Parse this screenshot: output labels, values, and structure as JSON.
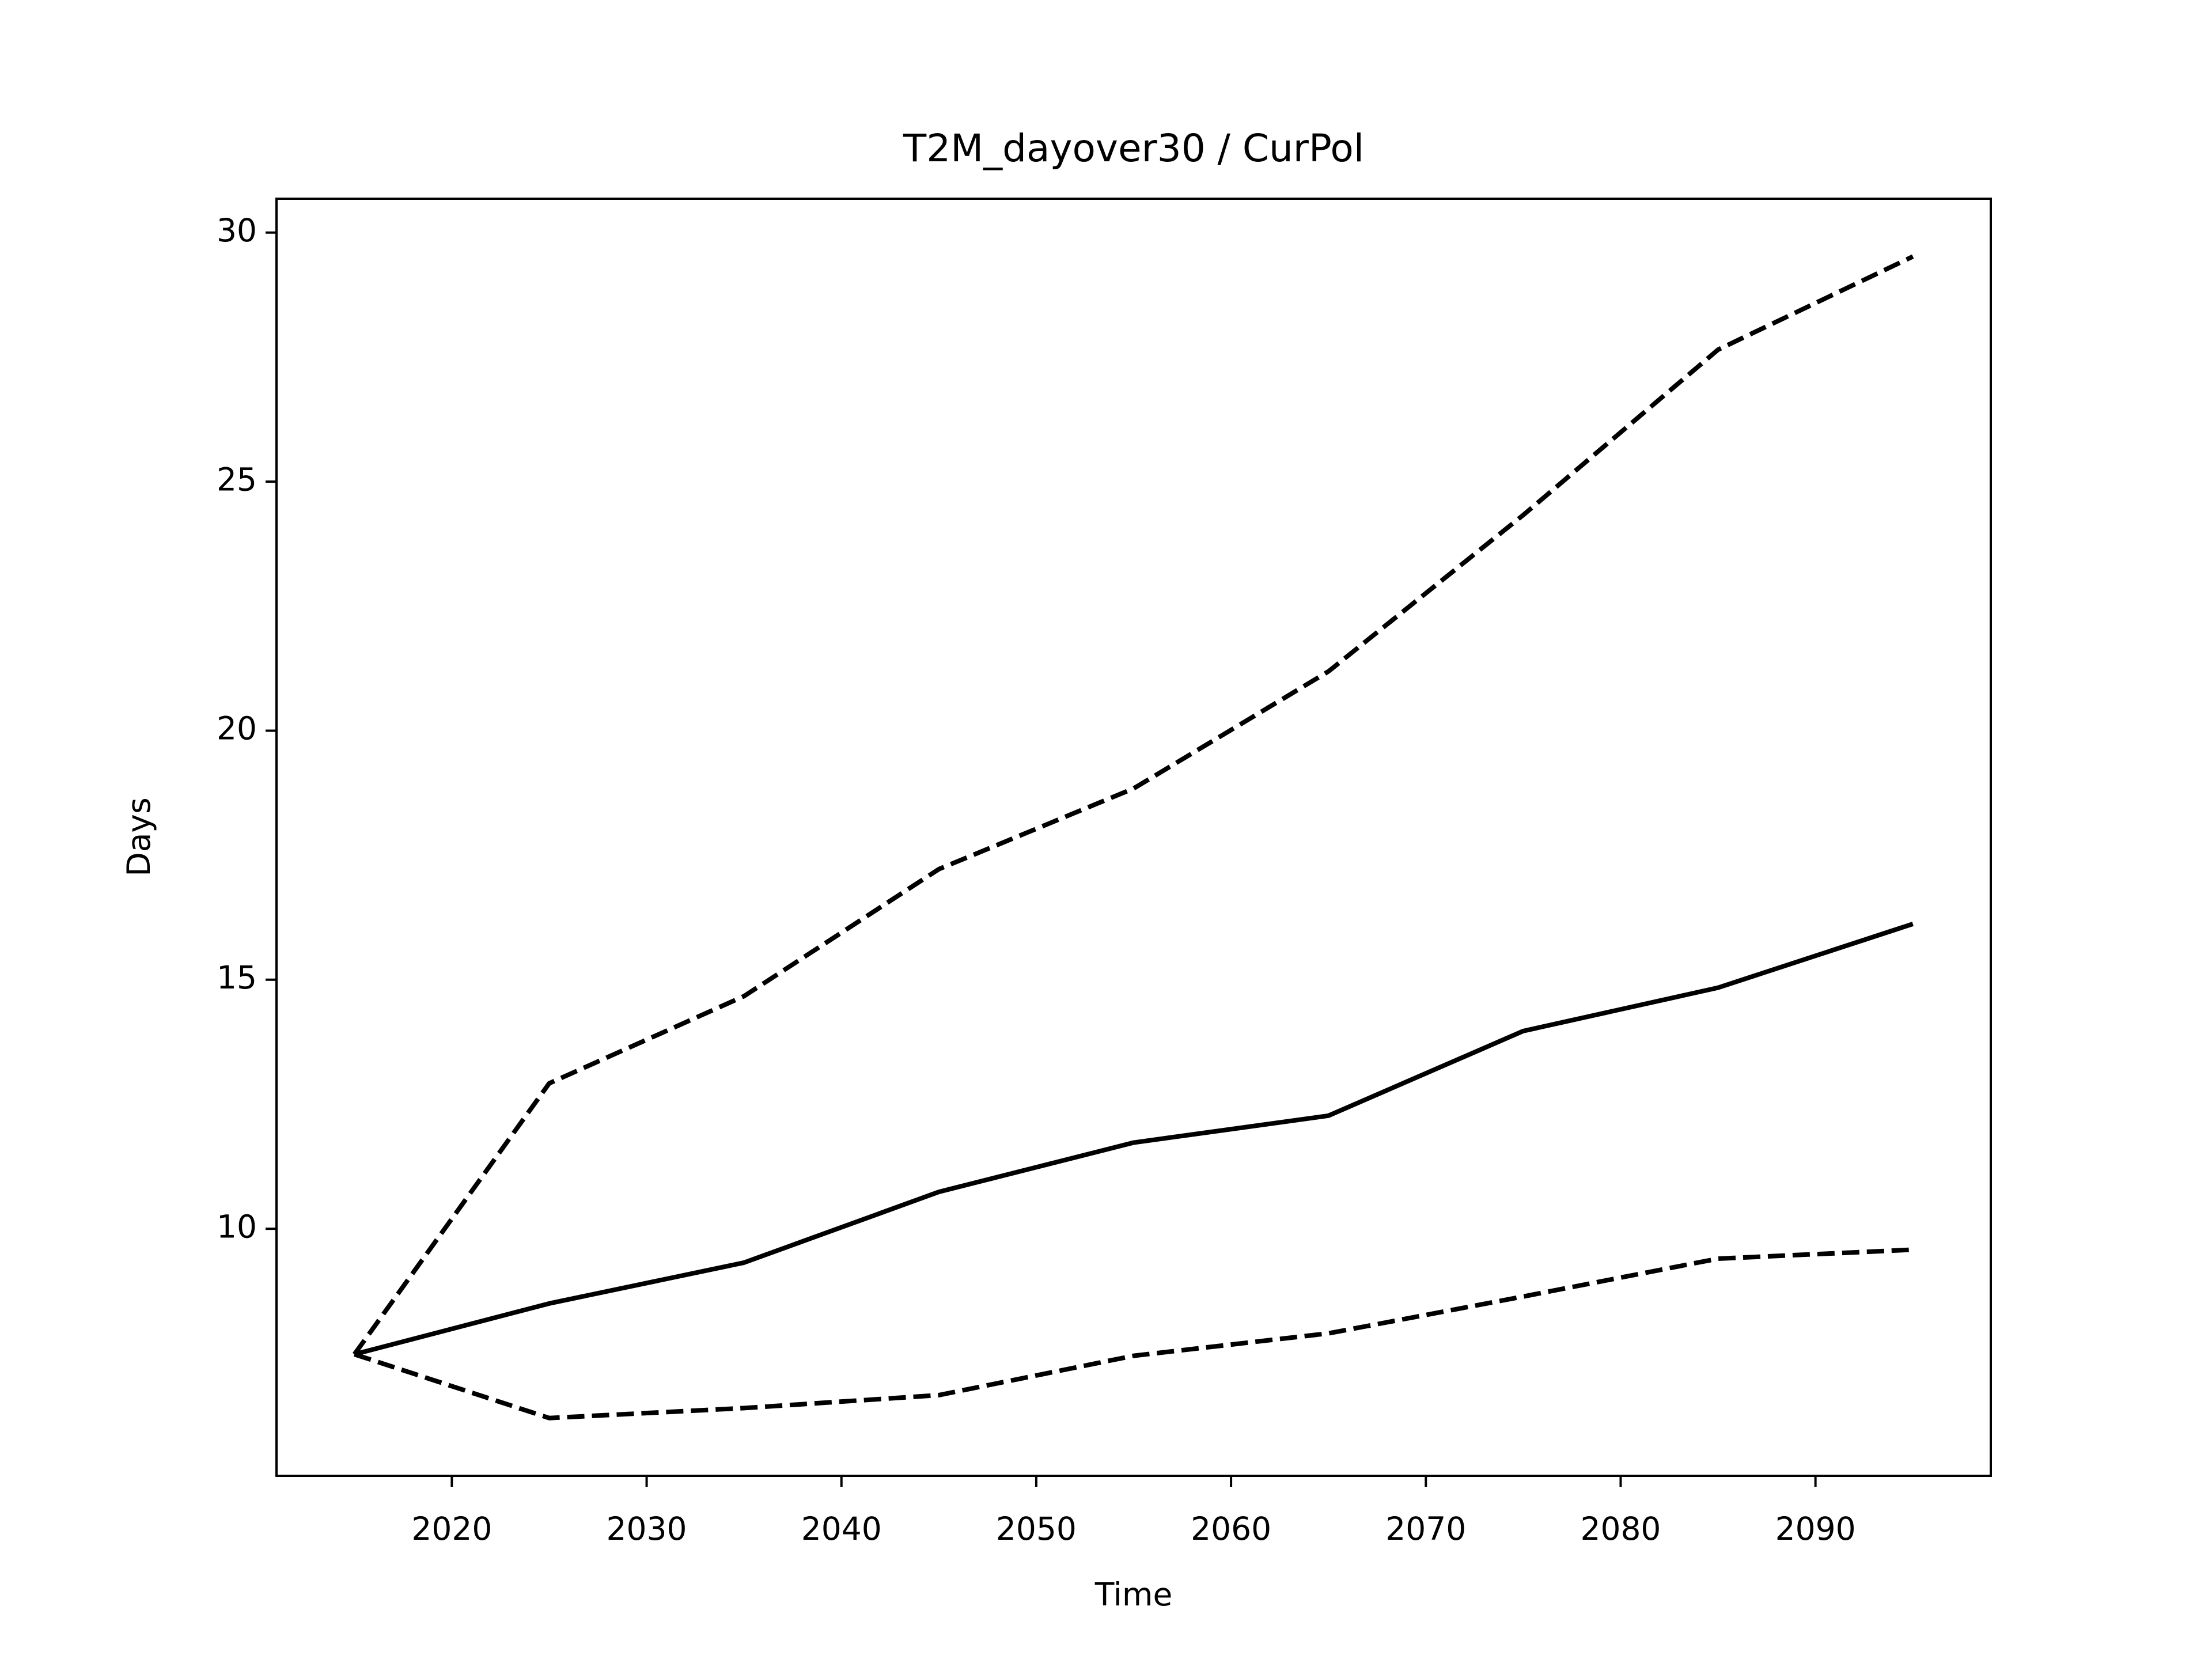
{
  "chart_data": {
    "type": "line",
    "title": "T2M_dayover30 / CurPol",
    "xlabel": "Time",
    "ylabel": "Days",
    "x": [
      2015,
      2025,
      2035,
      2045,
      2055,
      2065,
      2075,
      2085,
      2095
    ],
    "series": [
      {
        "color": "#000000",
        "linestyle": "solid",
        "values": [
          7.48,
          8.5,
          9.32,
          10.74,
          11.73,
          12.27,
          13.97,
          14.84,
          16.12
        ]
      },
      {
        "color": "#000000",
        "linestyle": "dashed",
        "values": [
          7.48,
          12.92,
          14.67,
          17.22,
          18.84,
          21.19,
          24.33,
          27.65,
          29.52
        ]
      },
      {
        "color": "#000000",
        "linestyle": "dashed",
        "values": [
          7.48,
          6.2,
          6.4,
          6.66,
          7.45,
          7.9,
          8.64,
          9.4,
          9.58
        ]
      }
    ],
    "xlim": [
      2011,
      2099
    ],
    "xticks": [
      2020,
      2030,
      2040,
      2050,
      2060,
      2070,
      2080,
      2090
    ],
    "ylim": [
      5.04,
      30.68
    ],
    "yticks": [
      10,
      15,
      20,
      25,
      30
    ],
    "grid": false
  }
}
